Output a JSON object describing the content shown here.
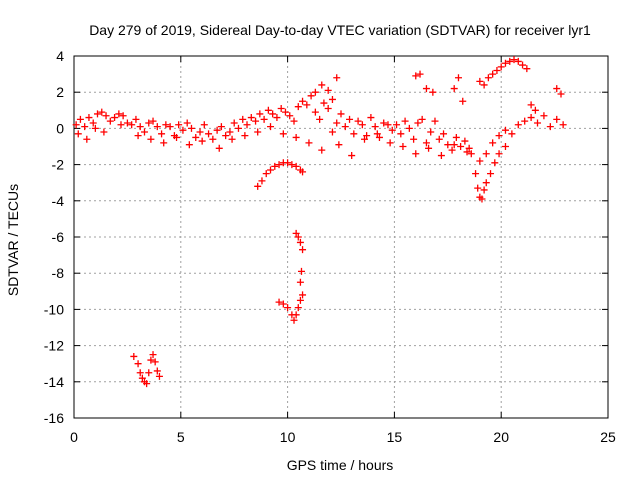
{
  "chart_data": {
    "type": "scatter",
    "title": "Day 279 of 2019, Sidereal Day-to-day VTEC variation (SDTVAR) for receiver lyr1",
    "xlabel": "GPS time / hours",
    "ylabel": "SDTVAR / TECUs",
    "xlim": [
      0,
      25
    ],
    "ylim": [
      -16,
      4
    ],
    "xticks": [
      0,
      5,
      10,
      15,
      20,
      25
    ],
    "yticks": [
      -16,
      -14,
      -12,
      -10,
      -8,
      -6,
      -4,
      -2,
      0,
      2,
      4
    ],
    "grid": true,
    "marker": "+",
    "marker_color": "#ff0000",
    "segments": [
      {
        "name": "main-band",
        "x": [
          0.1,
          0.3,
          0.5,
          0.7,
          0.9,
          1.1,
          1.3,
          1.5,
          1.7,
          1.9,
          2.1,
          2.3,
          2.5,
          2.7,
          2.9,
          3.1,
          3.3,
          3.5,
          3.7,
          3.9,
          4.1,
          4.3,
          4.5,
          4.7,
          4.9,
          5.1,
          5.3,
          5.5,
          5.7,
          5.9,
          6.1,
          6.3,
          6.5,
          6.7,
          6.9,
          7.1,
          7.3,
          7.5,
          7.7,
          7.9,
          8.1,
          8.3,
          8.5,
          8.7,
          8.9,
          9.1,
          9.3,
          9.5,
          9.7,
          9.9,
          10.1,
          10.3,
          10.5,
          10.7,
          10.9,
          11.1,
          11.3,
          11.5,
          11.7,
          11.9,
          12.1,
          12.3,
          12.5,
          12.7,
          12.9,
          13.1,
          13.3,
          13.5,
          13.7,
          13.9,
          14.1,
          14.3,
          14.5,
          14.7,
          14.9,
          15.1,
          15.3,
          15.5,
          15.7,
          15.9,
          16.1,
          16.3,
          16.5,
          16.7,
          16.9,
          17.1,
          17.3,
          17.5,
          17.7,
          17.9,
          18.1,
          18.3,
          18.5
        ],
        "y": [
          0.2,
          0.5,
          0.1,
          0.6,
          0.3,
          0.8,
          0.9,
          0.7,
          0.4,
          0.6,
          0.8,
          0.7,
          0.3,
          0.2,
          0.5,
          0.1,
          -0.2,
          0.3,
          0.4,
          0.1,
          -0.3,
          0.2,
          0.1,
          -0.4,
          0.2,
          -0.1,
          0.3,
          0.0,
          -0.5,
          -0.2,
          0.2,
          -0.3,
          -0.6,
          -0.1,
          0.1,
          -0.4,
          -0.2,
          0.3,
          0.0,
          0.5,
          0.2,
          0.6,
          0.4,
          0.8,
          0.5,
          1.0,
          0.8,
          0.6,
          1.1,
          0.9,
          0.7,
          0.4,
          1.2,
          1.5,
          1.3,
          1.8,
          0.9,
          0.5,
          1.4,
          1.1,
          -0.2,
          0.3,
          0.8,
          0.1,
          0.5,
          -0.3,
          0.4,
          0.2,
          -0.4,
          0.6,
          0.1,
          -0.5,
          0.3,
          0.2,
          -0.1,
          0.2,
          -0.3,
          0.4,
          0.0,
          -0.6,
          0.3,
          0.5,
          -0.8,
          -0.2,
          0.4,
          -0.6,
          -0.3,
          -0.9,
          -1.2,
          -0.5,
          -1.0,
          -0.7,
          -1.1
        ]
      },
      {
        "name": "main-band-lower",
        "x": [
          0.2,
          0.6,
          1.0,
          1.4,
          2.2,
          3.0,
          3.6,
          4.2,
          4.8,
          5.4,
          6.0,
          6.8,
          7.4,
          8.0,
          8.6,
          9.2,
          9.8,
          10.4,
          11.0,
          11.6,
          12.4,
          13.0,
          13.6,
          14.2,
          14.8,
          15.4,
          16.0,
          16.6,
          17.2,
          17.8,
          18.4
        ],
        "y": [
          -0.3,
          -0.6,
          0.0,
          -0.2,
          0.2,
          -0.4,
          -0.6,
          -0.8,
          -0.5,
          -0.9,
          -0.7,
          -1.1,
          -0.6,
          -0.4,
          -0.2,
          0.1,
          -0.3,
          -0.5,
          -0.8,
          -1.2,
          -0.9,
          -1.5,
          -0.6,
          -0.3,
          -0.8,
          -1.0,
          -1.4,
          -1.1,
          -1.5,
          -0.9,
          -1.3
        ]
      },
      {
        "name": "high-spikes",
        "x": [
          11.3,
          11.6,
          11.9,
          12.1,
          12.3,
          16.0,
          16.2,
          16.5,
          16.8,
          17.8,
          18.0,
          18.2
        ],
        "y": [
          2.0,
          2.4,
          2.1,
          1.6,
          2.8,
          2.9,
          3.0,
          2.2,
          2.0,
          2.2,
          2.8,
          1.5
        ]
      },
      {
        "name": "dip-near-19h",
        "x": [
          18.6,
          18.8,
          18.9,
          19.0,
          19.1,
          19.2,
          19.3,
          19.5,
          19.7,
          19.9,
          20.2,
          20.5,
          20.8,
          21.1,
          21.4,
          21.7,
          22.0,
          22.3,
          22.6,
          22.9
        ],
        "y": [
          -1.4,
          -2.5,
          -3.3,
          -3.8,
          -3.9,
          -3.4,
          -3.0,
          -2.5,
          -1.9,
          -1.4,
          -1.0,
          -0.3,
          0.2,
          0.4,
          0.6,
          0.3,
          0.7,
          0.1,
          0.5,
          0.2
        ]
      },
      {
        "name": "secondary-dip",
        "x": [
          19.0,
          19.3,
          19.6,
          19.9,
          20.2
        ],
        "y": [
          -1.8,
          -1.4,
          -0.8,
          -0.4,
          -0.1
        ]
      },
      {
        "name": "upper-arc",
        "x": [
          19.0,
          19.2,
          19.4,
          19.6,
          19.8,
          20.0,
          20.2,
          20.4,
          20.6,
          20.8,
          21.0,
          21.2
        ],
        "y": [
          2.6,
          2.4,
          2.8,
          3.0,
          3.2,
          3.4,
          3.6,
          3.7,
          3.8,
          3.7,
          3.5,
          3.3
        ]
      },
      {
        "name": "upper-right-segment",
        "x": [
          21.4,
          21.6,
          22.6,
          22.8
        ],
        "y": [
          1.3,
          1.0,
          2.2,
          1.9
        ]
      },
      {
        "name": "arc-8.6-10.7h",
        "x": [
          8.6,
          8.8,
          9.0,
          9.2,
          9.4,
          9.6,
          9.8,
          10.0,
          10.2,
          10.4,
          10.6,
          10.7
        ],
        "y": [
          -3.2,
          -2.9,
          -2.5,
          -2.3,
          -2.1,
          -2.0,
          -1.9,
          -1.9,
          -2.0,
          -2.1,
          -2.3,
          -2.4
        ]
      },
      {
        "name": "drop-10.5h",
        "x": [
          10.4,
          10.5,
          10.6,
          10.7,
          10.65,
          10.6
        ],
        "y": [
          -5.8,
          -6.0,
          -6.3,
          -6.7,
          -7.9,
          -8.5
        ]
      },
      {
        "name": "cluster-10h",
        "x": [
          9.6,
          9.8,
          10.0,
          10.2,
          10.3,
          10.4,
          10.5,
          10.6,
          10.7
        ],
        "y": [
          -9.6,
          -9.7,
          -9.9,
          -10.3,
          -10.6,
          -10.3,
          -9.9,
          -9.5,
          -9.2
        ]
      },
      {
        "name": "cluster-3h",
        "x": [
          2.8,
          3.0,
          3.1,
          3.2,
          3.3,
          3.4,
          3.5,
          3.6,
          3.7,
          3.8,
          3.9,
          4.0
        ],
        "y": [
          -12.6,
          -13.0,
          -13.5,
          -13.8,
          -14.0,
          -14.1,
          -13.5,
          -12.8,
          -12.5,
          -12.9,
          -13.4,
          -13.7
        ]
      }
    ]
  }
}
